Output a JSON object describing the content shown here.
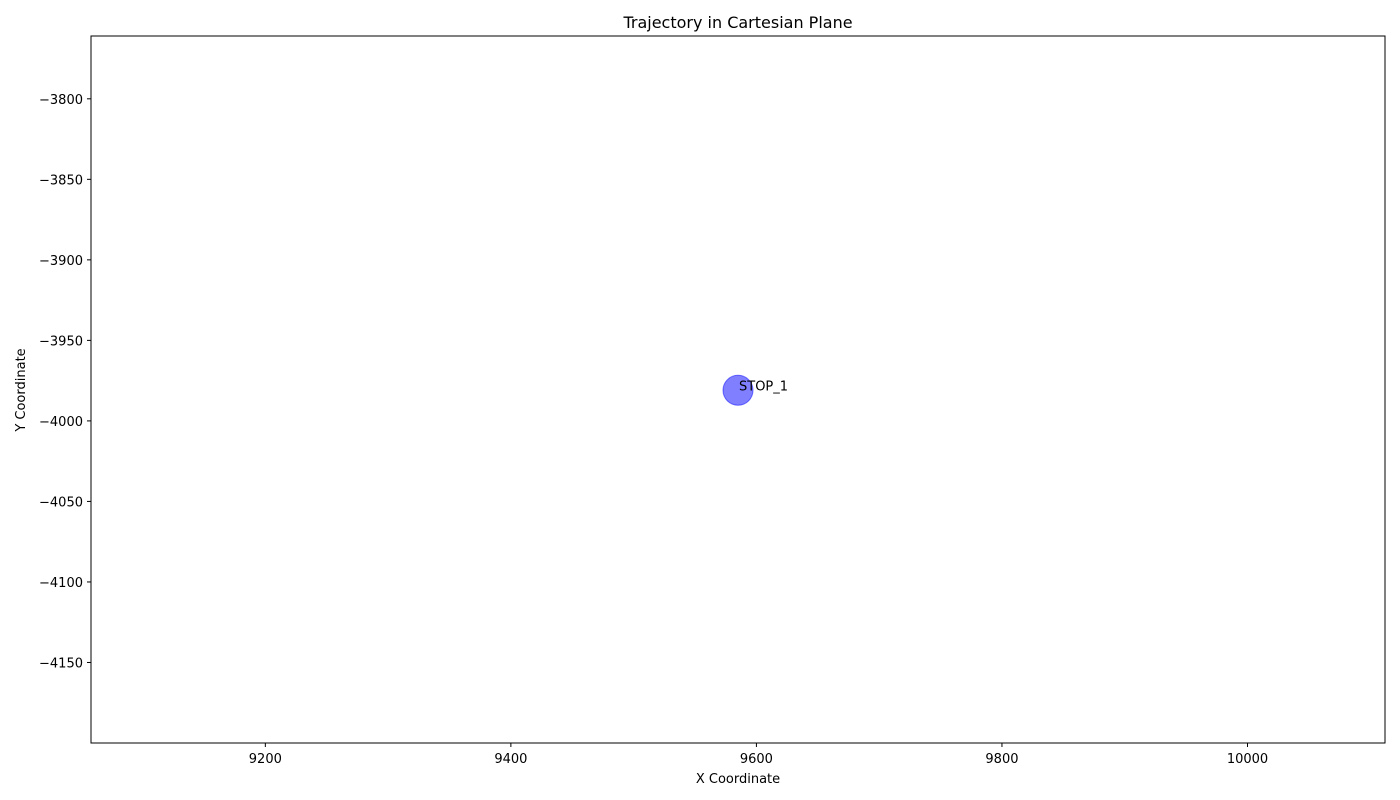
{
  "chart_data": {
    "type": "scatter",
    "title": "Trajectory in Cartesian Plane",
    "xlabel": "X Coordinate",
    "ylabel": "Y Coordinate",
    "xlim": [
      9058,
      10112
    ],
    "ylim": [
      -4200,
      -3761
    ],
    "xticks": [
      9200,
      9400,
      9600,
      9800,
      10000
    ],
    "yticks": [
      -3800,
      -3850,
      -3900,
      -3950,
      -4000,
      -4050,
      -4100,
      -4150
    ],
    "grid": false,
    "points": [
      {
        "x": 9585,
        "y": -3981,
        "label": "STOP_1",
        "color": "#0000ff",
        "alpha": 0.5
      }
    ]
  }
}
